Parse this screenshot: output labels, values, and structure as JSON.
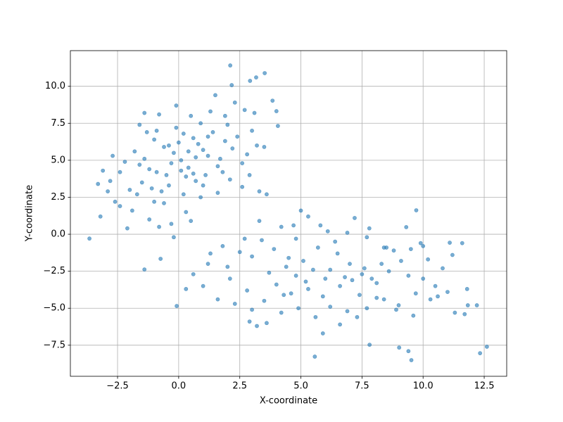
{
  "chart_data": {
    "type": "scatter",
    "x_label": "X-coordinate",
    "y_label": "Y-coordinate",
    "color": "#1f77b4",
    "opacity": 0.6,
    "grid": true,
    "xlim": [
      -4.43,
      13.42
    ],
    "ylim": [
      -9.6,
      12.41
    ],
    "xticks": [
      {
        "value": -2.5,
        "label": "−2.5"
      },
      {
        "value": 0,
        "label": "0.0"
      },
      {
        "value": 2.5,
        "label": "2.5"
      },
      {
        "value": 5,
        "label": "5.0"
      },
      {
        "value": 7.5,
        "label": "7.5"
      },
      {
        "value": 10,
        "label": "10.0"
      },
      {
        "value": 12.5,
        "label": "12.5"
      }
    ],
    "yticks": [
      {
        "value": -7.5,
        "label": "−7.5"
      },
      {
        "value": -5,
        "label": "−5.0"
      },
      {
        "value": -2.5,
        "label": "−2.5"
      },
      {
        "value": 0,
        "label": "0.0"
      },
      {
        "value": 2.5,
        "label": "2.5"
      },
      {
        "value": 5,
        "label": "5.0"
      },
      {
        "value": 7.5,
        "label": "7.5"
      },
      {
        "value": 10,
        "label": "10.0"
      }
    ],
    "x": [
      0.1,
      0.4,
      -0.3,
      0.8,
      -0.9,
      1.2,
      -1.5,
      0.2,
      -0.6,
      1.6,
      -1.2,
      0.6,
      -2.0,
      1.9,
      -0.1,
      0.9,
      -1.8,
      2.2,
      -0.4,
      1.4,
      -2.4,
      0.3,
      -1.0,
      2.6,
      -0.7,
      1.1,
      -1.4,
      0.5,
      -2.8,
      1.7,
      -0.2,
      0.7,
      -1.7,
      2.0,
      -3.1,
      0.0,
      1.3,
      -0.9,
      2.4,
      -1.1,
      0.4,
      -0.5,
      1.0,
      -2.2,
      0.2,
      1.8,
      -1.3,
      2.8,
      -0.8,
      0.6,
      -3.3,
      -2.6,
      -1.9,
      -1.2,
      -0.6,
      0.3,
      2.3,
      1.5,
      3.0,
      -1.6,
      -2.1,
      -3.2,
      -0.3,
      3.2,
      2.9,
      -2.7,
      1.0,
      -0.1,
      1.9,
      -1.4,
      0.9,
      2.6,
      -0.8,
      0.5,
      -2.4,
      -1.6,
      0.1,
      1.2,
      -0.4,
      0.7,
      3.5,
      2.7,
      3.1,
      -0.2,
      1.6,
      3.3,
      3.6,
      -1.0,
      2.1,
      -2.9,
      5.0,
      5.3,
      6.1,
      7.2,
      7.8,
      4.2,
      3.4,
      4.8,
      5.7,
      6.5,
      7.0,
      7.5,
      7.9,
      6.2,
      5.1,
      4.4,
      3.7,
      3.0,
      2.5,
      1.8,
      1.2,
      2.1,
      2.8,
      3.5,
      4.0,
      4.6,
      5.3,
      5.9,
      6.6,
      7.1,
      8.1,
      8.6,
      9.1,
      9.5,
      9.9,
      10.2,
      10.8,
      11.2,
      11.6,
      10.5,
      9.7,
      9.0,
      8.4,
      7.7,
      6.9,
      6.2,
      5.6,
      4.9,
      4.2,
      3.6,
      3.0,
      2.9,
      3.2,
      2.3,
      1.6,
      1.0,
      0.6,
      0.3,
      1.3,
      2.0,
      4.8,
      5.5,
      6.0,
      6.8,
      7.6,
      8.3,
      8.8,
      9.4,
      10.0,
      10.3,
      11.0,
      11.8,
      12.2,
      11.7,
      11.3,
      10.6,
      9.6,
      8.9,
      8.1,
      7.4,
      3.9,
      4.5,
      5.8,
      6.9,
      7.7,
      8.5,
      2.7,
      3.3,
      4.7,
      6.4,
      -3.65,
      2.11,
      2.92,
      3.17,
      3.52,
      2.17,
      3.84,
      4.0,
      4.06,
      -0.08,
      -1.4,
      -0.74,
      5.57,
      7.81,
      9.02,
      9.4,
      9.52,
      12.33,
      12.61,
      11.83,
      9.72,
      9.31,
      11.09,
      5.9,
      6.6,
      7.3,
      8.4,
      10.0,
      4.3,
      5.2
    ],
    "values": [
      5.0,
      5.6,
      4.8,
      6.1,
      4.2,
      5.3,
      3.5,
      6.8,
      5.9,
      4.6,
      4.4,
      4.1,
      3.0,
      6.3,
      7.2,
      7.5,
      5.6,
      5.8,
      3.3,
      6.9,
      4.2,
      3.9,
      6.4,
      4.8,
      2.9,
      4.0,
      5.1,
      8.0,
      3.6,
      5.1,
      5.5,
      5.2,
      2.7,
      7.4,
      4.3,
      6.2,
      8.3,
      7.0,
      6.6,
      3.1,
      4.5,
      4.0,
      5.7,
      4.9,
      2.7,
      4.2,
      6.9,
      5.4,
      8.1,
      6.5,
      3.4,
      2.2,
      1.6,
      1.0,
      2.1,
      1.5,
      8.9,
      9.4,
      7.0,
      7.4,
      0.4,
      1.2,
      0.7,
      6.0,
      4.0,
      5.3,
      3.3,
      8.7,
      8.0,
      8.2,
      2.5,
      3.2,
      0.5,
      0.9,
      1.9,
      4.7,
      4.3,
      6.6,
      6.0,
      3.6,
      5.9,
      8.4,
      8.2,
      -0.2,
      2.8,
      2.9,
      2.7,
      2.2,
      3.7,
      2.9,
      1.6,
      1.2,
      0.2,
      1.1,
      0.4,
      0.5,
      -0.4,
      -0.3,
      -0.9,
      -1.3,
      -2.0,
      -2.7,
      -3.0,
      -2.4,
      -1.8,
      -2.2,
      -2.6,
      -1.5,
      -1.2,
      -0.8,
      -2.0,
      -3.0,
      -3.8,
      -4.5,
      -3.4,
      -4.0,
      -3.7,
      -4.2,
      -3.5,
      -3.1,
      -3.3,
      -2.5,
      -1.8,
      -1.0,
      -0.6,
      -1.7,
      -2.3,
      -1.4,
      -0.6,
      -3.5,
      -4.0,
      -4.8,
      -4.4,
      -5.0,
      -5.2,
      -4.9,
      -5.6,
      -5.0,
      -5.3,
      -6.0,
      -5.1,
      -5.9,
      -6.2,
      -4.7,
      -4.4,
      -3.5,
      -2.7,
      -3.7,
      -1.3,
      -2.2,
      -2.8,
      -2.4,
      -3.0,
      -2.9,
      -2.3,
      -2.0,
      -1.1,
      -2.8,
      -3.0,
      -4.4,
      -3.9,
      -3.7,
      -4.8,
      -5.4,
      -5.3,
      -4.2,
      -5.5,
      -5.1,
      -4.3,
      -4.1,
      -1.0,
      -1.6,
      0.6,
      0.1,
      -0.2,
      -0.9,
      -0.3,
      0.9,
      0.6,
      -0.5,
      -0.29,
      11.41,
      10.37,
      10.6,
      10.89,
      10.08,
      9.03,
      8.32,
      7.32,
      -4.85,
      -2.38,
      -1.66,
      -8.27,
      -7.47,
      -7.66,
      -7.9,
      -8.51,
      -8.04,
      -7.6,
      -4.8,
      1.62,
      0.48,
      -0.57,
      -6.7,
      -6.1,
      -5.6,
      -0.9,
      -0.8,
      -4.1,
      -3.2
    ]
  }
}
